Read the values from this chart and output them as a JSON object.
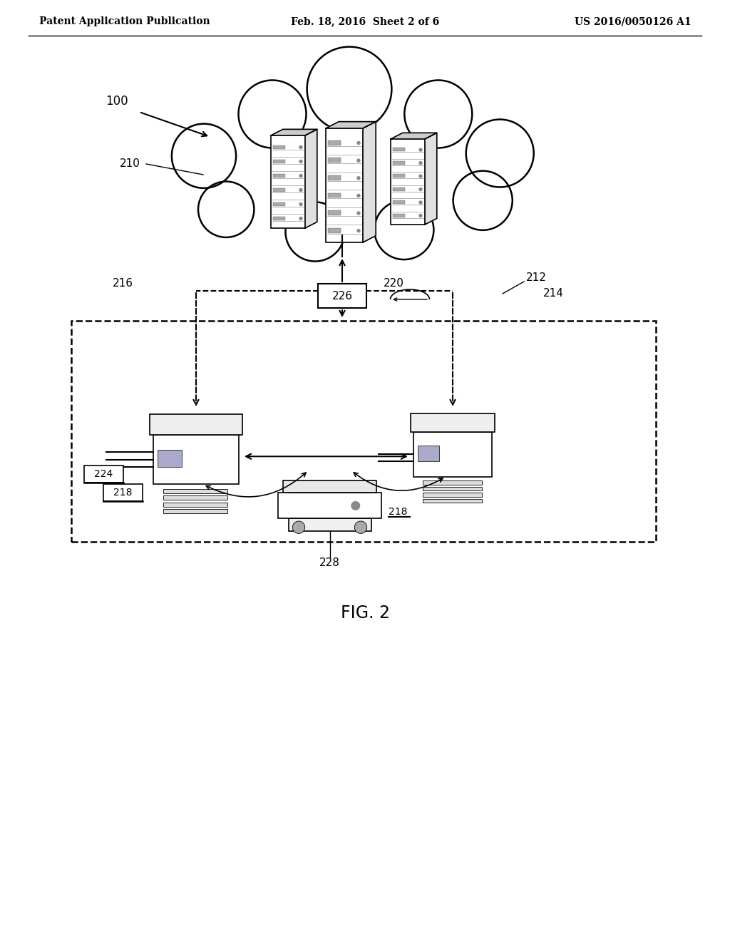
{
  "bg_color": "#ffffff",
  "header_left": "Patent Application Publication",
  "header_mid": "Feb. 18, 2016  Sheet 2 of 6",
  "header_right": "US 2016/0050126 A1",
  "fig_label": "FIG. 2",
  "label_100": "100",
  "label_210": "210",
  "label_226": "226",
  "label_216": "216",
  "label_220": "220",
  "label_212": "212",
  "label_214": "214",
  "label_224": "224",
  "label_218a": "218",
  "label_218b": "218",
  "label_228": "228"
}
